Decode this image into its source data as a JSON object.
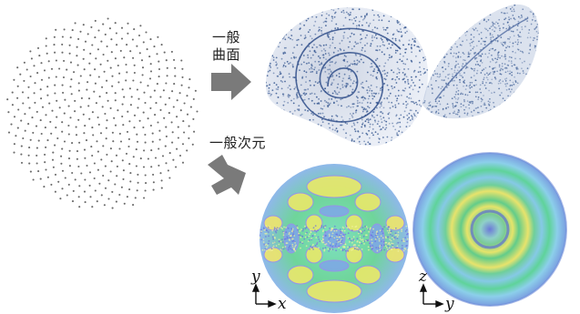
{
  "labels": {
    "general_surface_line1": "一般",
    "general_surface_line2": "曲面",
    "general_dimension": "一般次元"
  },
  "axes": {
    "left_panel": {
      "vertical": "y",
      "horizontal": "x"
    },
    "right_panel": {
      "vertical": "z",
      "horizontal": "y"
    }
  },
  "colors": {
    "arrow": "#7a7a7a",
    "dots": "#6b6b6b",
    "shell_points": "#3f5f96",
    "field_green": "#4fd08a",
    "field_yellow": "#e9e86a",
    "field_blue": "#7fa8e6",
    "field_cyan": "#7ee0d0"
  }
}
